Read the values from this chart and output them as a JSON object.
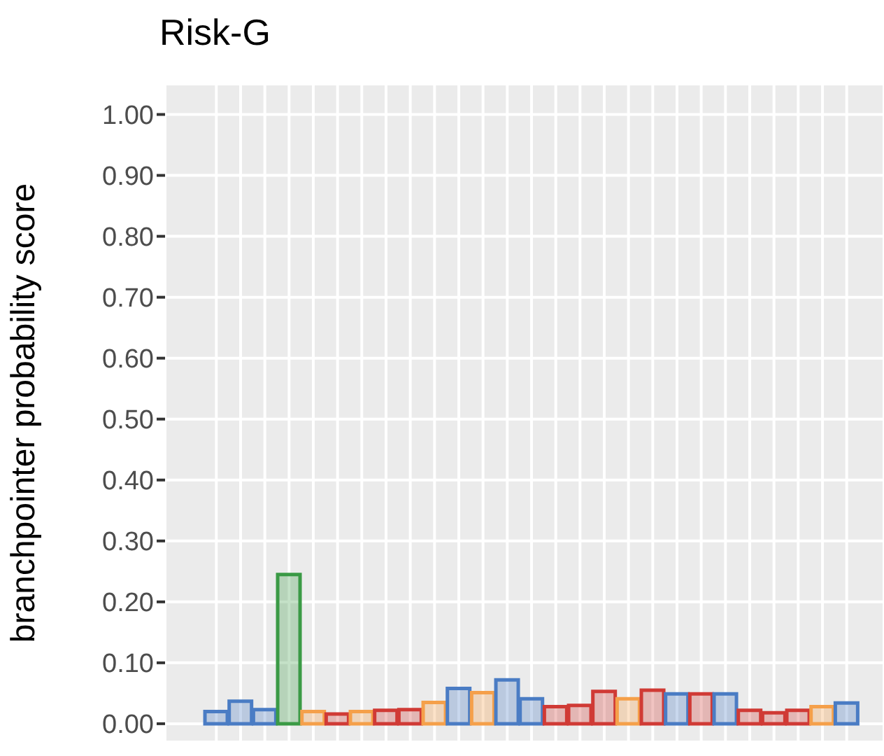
{
  "chart_data": {
    "type": "bar",
    "title": "Risk-G",
    "ylabel": "branchpointer probability score",
    "categories": [
      null,
      null,
      null,
      null,
      null,
      null,
      null,
      null,
      null,
      null,
      null,
      null,
      null,
      null,
      null,
      null,
      null,
      null,
      null,
      null,
      null,
      null,
      null,
      null,
      null,
      null,
      null
    ],
    "values": [
      0.02,
      0.037,
      0.023,
      0.245,
      0.02,
      0.016,
      0.02,
      0.022,
      0.023,
      0.035,
      0.058,
      0.051,
      0.072,
      0.041,
      0.028,
      0.03,
      0.053,
      0.041,
      0.055,
      0.049,
      0.049,
      0.049,
      0.022,
      0.018,
      0.022,
      0.028,
      0.034
    ],
    "colors": [
      "#4a7cc4",
      "#4a7cc4",
      "#4a7cc4",
      "#3a9a45",
      "#f5a04a",
      "#d03a35",
      "#f5a04a",
      "#d03a35",
      "#d03a35",
      "#f5a04a",
      "#4a7cc4",
      "#f5a04a",
      "#4a7cc4",
      "#4a7cc4",
      "#d03a35",
      "#d03a35",
      "#d03a35",
      "#f5a04a",
      "#d03a35",
      "#4a7cc4",
      "#d03a35",
      "#4a7cc4",
      "#d03a35",
      "#d03a35",
      "#d03a35",
      "#f5a04a",
      "#4a7cc4"
    ],
    "ylim": [
      -0.03,
      1.05
    ],
    "yticks": [
      {
        "value": 0,
        "label": "0.00"
      },
      {
        "value": 0.1,
        "label": "0.10"
      },
      {
        "value": 0.2,
        "label": "0.20"
      },
      {
        "value": 0.3,
        "label": "0.30"
      },
      {
        "value": 0.4,
        "label": "0.40"
      },
      {
        "value": 0.5,
        "label": "0.50"
      },
      {
        "value": 0.6,
        "label": "0.60"
      },
      {
        "value": 0.7,
        "label": "0.70"
      },
      {
        "value": 0.8,
        "label": "0.80"
      },
      {
        "value": 0.9,
        "label": "0.90"
      },
      {
        "value": 1,
        "label": "1.00"
      }
    ],
    "grid": true,
    "tick_labels": "y"
  }
}
